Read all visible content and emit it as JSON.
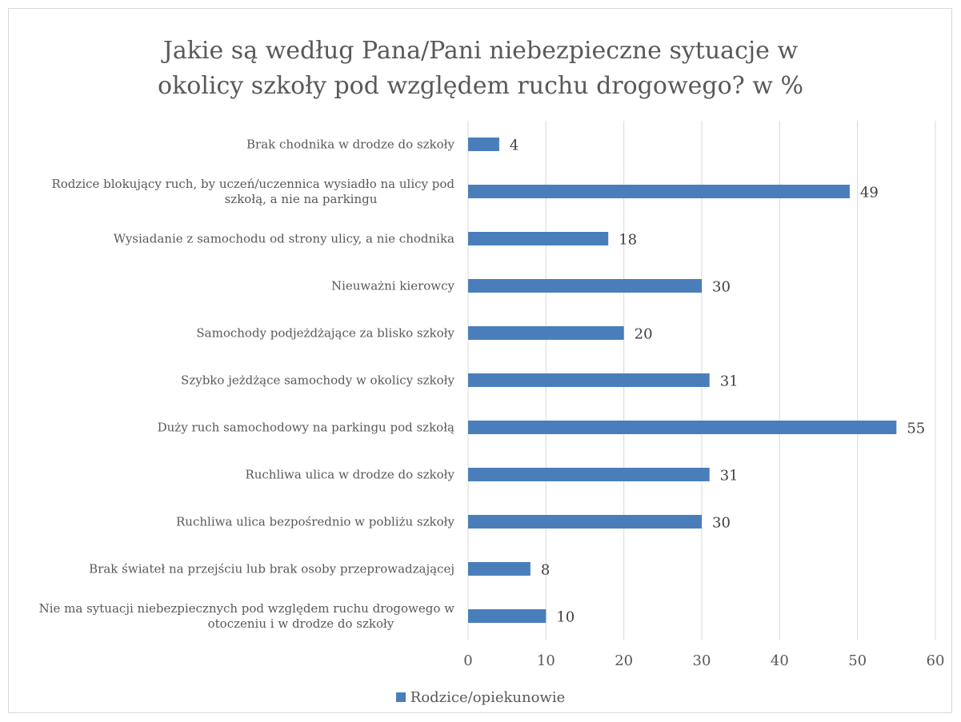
{
  "chart_data": {
    "type": "bar",
    "orientation": "horizontal",
    "title_lines": [
      "Jakie są według Pana/Pani niebezpieczne sytuacje w",
      "okolicy szkoły pod względem ruchu drogowego? w %"
    ],
    "categories": [
      [
        "Brak chodnika w drodze do szkoły"
      ],
      [
        "Rodzice blokujący ruch, by uczeń/uczennica wysiadło na ulicy pod",
        "szkołą, a nie na parkingu"
      ],
      [
        "Wysiadanie z samochodu od strony ulicy, a nie chodnika"
      ],
      [
        "Nieuważni kierowcy"
      ],
      [
        "Samochody podjeżdżające za blisko szkoły"
      ],
      [
        "Szybko jeżdżące samochody w okolicy szkoły"
      ],
      [
        "Duży ruch samochodowy na parkingu pod szkołą"
      ],
      [
        "Ruchliwa ulica w drodze do szkoły"
      ],
      [
        "Ruchliwa ulica bezpośrednio w pobliżu szkoły"
      ],
      [
        "Brak świateł na przejściu lub brak osoby przeprowadzającej"
      ],
      [
        "Nie ma sytuacji niebezpiecznych pod względem ruchu drogowego w",
        "otoczeniu i w drodze do szkoły"
      ]
    ],
    "series": [
      {
        "name": "Rodzice/opiekunowie",
        "color": "#4a7ebb",
        "values": [
          4,
          49,
          18,
          30,
          20,
          31,
          55,
          31,
          30,
          8,
          10
        ]
      }
    ],
    "xlim": [
      0,
      60
    ],
    "xticks": [
      0,
      10,
      20,
      30,
      40,
      50,
      60
    ],
    "grid": true,
    "legend_position": "bottom"
  },
  "legend": {
    "label": "Rodzice/opiekunowie"
  }
}
